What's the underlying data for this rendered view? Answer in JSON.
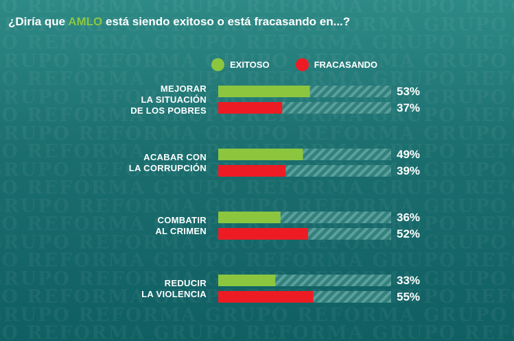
{
  "title": {
    "prefix": "¿Diría que ",
    "highlight": "AMLO",
    "suffix": " está siendo exitoso o está fracasando en...?"
  },
  "watermark": "GRUPO REFORMA",
  "colors": {
    "exitoso": "#8cc63f",
    "fracasando": "#ed1c24",
    "track": "#3f8a87",
    "highlight": "#8cc63f"
  },
  "chart_data": {
    "type": "bar",
    "orientation": "horizontal",
    "title": "¿Diría que AMLO está siendo exitoso o está fracasando en...?",
    "xlim": [
      0,
      100
    ],
    "legend": "top",
    "categories": [
      "MEJORAR LA SITUACIÓN DE LOS POBRES",
      "ACABAR CON LA CORRUPCIÓN",
      "COMBATIR AL CRIMEN",
      "REDUCIR LA VIOLENCIA"
    ],
    "category_lines": [
      [
        "MEJORAR",
        "LA SITUACIÓN",
        "DE LOS POBRES"
      ],
      [
        "ACABAR CON",
        "LA CORRUPCIÓN"
      ],
      [
        "COMBATIR",
        "AL CRIMEN"
      ],
      [
        "REDUCIR",
        "LA VIOLENCIA"
      ]
    ],
    "series": [
      {
        "name": "EXITOSO",
        "values": [
          53,
          49,
          36,
          33
        ],
        "labels": [
          "53%",
          "49%",
          "36%",
          "33%"
        ]
      },
      {
        "name": "FRACASANDO",
        "values": [
          37,
          39,
          52,
          55
        ],
        "labels": [
          "37%",
          "39%",
          "52%",
          "55%"
        ]
      }
    ]
  }
}
